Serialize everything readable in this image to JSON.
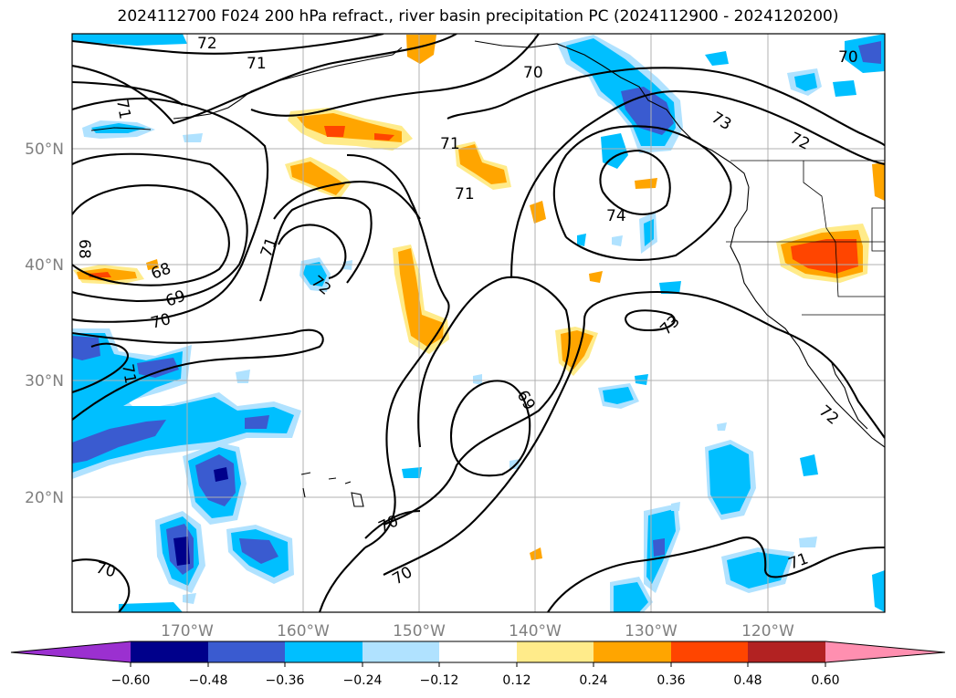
{
  "title": "2024112700 F024 200 hPa refract., river basin precipitation PC (2024112900 - 2024120200)",
  "lat_labels": [
    "50°N",
    "40°N",
    "30°N",
    "20°N"
  ],
  "lon_labels": [
    "170°W",
    "160°W",
    "150°W",
    "140°W",
    "130°W",
    "120°W"
  ],
  "colorbar": {
    "ticks": [
      "−0.60",
      "−0.48",
      "−0.36",
      "−0.24",
      "−0.12",
      "0.12",
      "0.24",
      "0.36",
      "0.48",
      "0.60"
    ],
    "colors": [
      "#9b30d0",
      "#00008b",
      "#3a5bd0",
      "#00bfff",
      "#b0e2ff",
      "#ffffff",
      "#ffeb8a",
      "#ffa500",
      "#ff4500",
      "#b22222",
      "#ff8fb0"
    ]
  },
  "contour_labels": [
    "72",
    "71",
    "70",
    "70",
    "71",
    "71",
    "73",
    "72",
    "71",
    "74",
    "68",
    "68",
    "71",
    "72",
    "69",
    "70",
    "71",
    "73",
    "69",
    "72",
    "70",
    "70",
    "70",
    "71"
  ],
  "colors": {
    "neg_light": "#b0e2ff",
    "neg_mid": "#00bfff",
    "neg_strong": "#3a5bd0",
    "neg_max": "#00008b",
    "pos_light": "#ffeb8a",
    "pos_mid": "#ffa500",
    "pos_strong": "#ff4500"
  }
}
